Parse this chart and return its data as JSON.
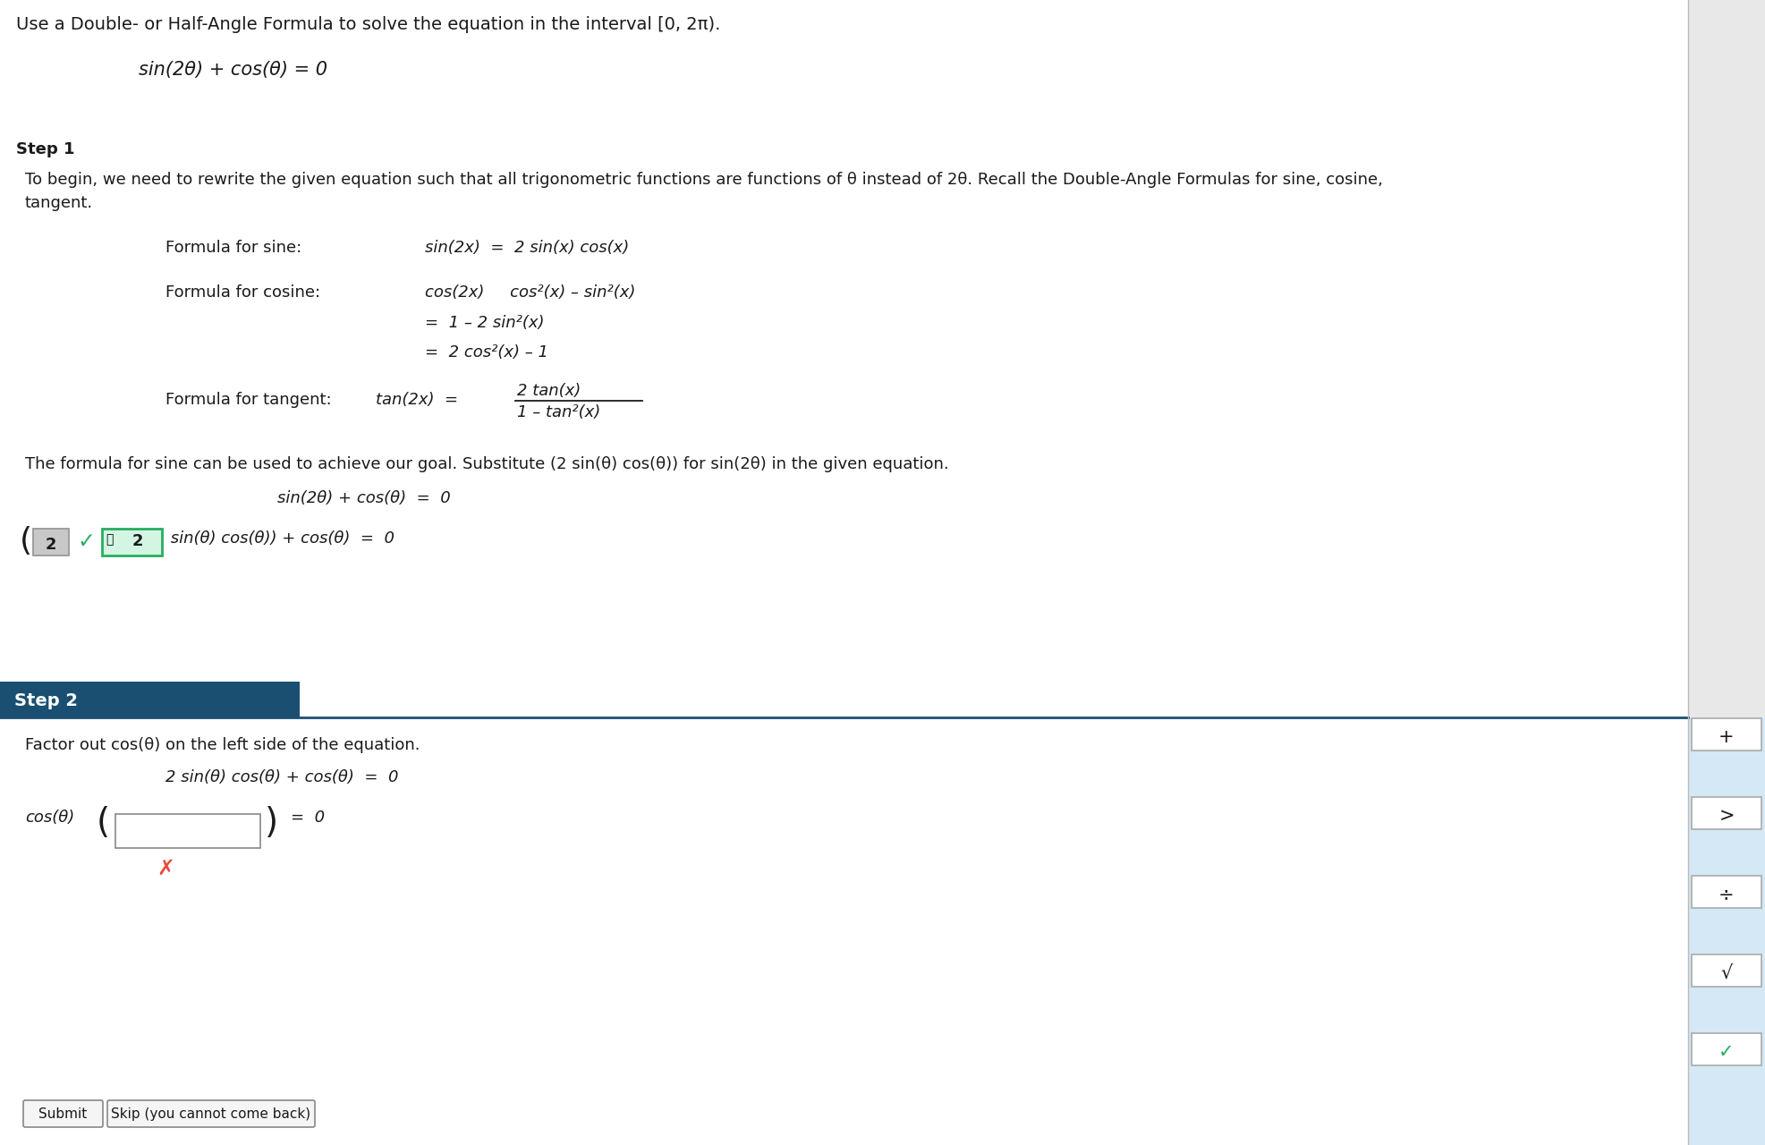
{
  "bg_color": "#ffffff",
  "title_text": "Use a Double- or Half-Angle Formula to solve the equation in the interval [0, 2π).",
  "eq_main": "sin(2θ) + cos(θ) = 0",
  "step1_label": "Step 1",
  "step1_line1": "To begin, we need to rewrite the given equation such that all trigonometric functions are functions of θ instead of 2θ. Recall the Double-Angle Formulas for sine, cosine,",
  "step1_line2": "tangent.",
  "fs_label": "Formula for sine:",
  "fs_eq": "sin(2x)  =  2 sin(x) cos(x)",
  "fc_label": "Formula for cosine:",
  "fc_eq1": "cos(2x)     cos²(x) – sin²(x)",
  "fc_eq2": "=  1 – 2 sin²(x)",
  "fc_eq3": "=  2 cos²(x) – 1",
  "ft_label": "Formula for tangent:",
  "ft_lhs": "tan(2x)  =",
  "ft_num": "2 tan(x)",
  "ft_den": "1 – tan²(x)",
  "conclusion": "The formula for sine can be used to achieve our goal. Substitute (2 sin(θ) cos(θ)) for sin(2θ) in the given equation.",
  "eq_step1_1": "sin(2θ) + cos(θ)  =  0",
  "eq_step1_2": " sin(θ) cos(θ)) + cos(θ)  =  0",
  "step2_label": "Step 2",
  "step2_text": "Factor out cos(θ) on the left side of the equation.",
  "step2_eq1": "2 sin(θ) cos(θ) + cos(θ)  =  0",
  "step2_header_color": "#1b4f72",
  "right_panel_bg_top": "#e8e8e8",
  "right_panel_bg_bot": "#d4e8f5",
  "btn_submit": "Submit",
  "btn_skip": "Skip (you cannot come back)"
}
